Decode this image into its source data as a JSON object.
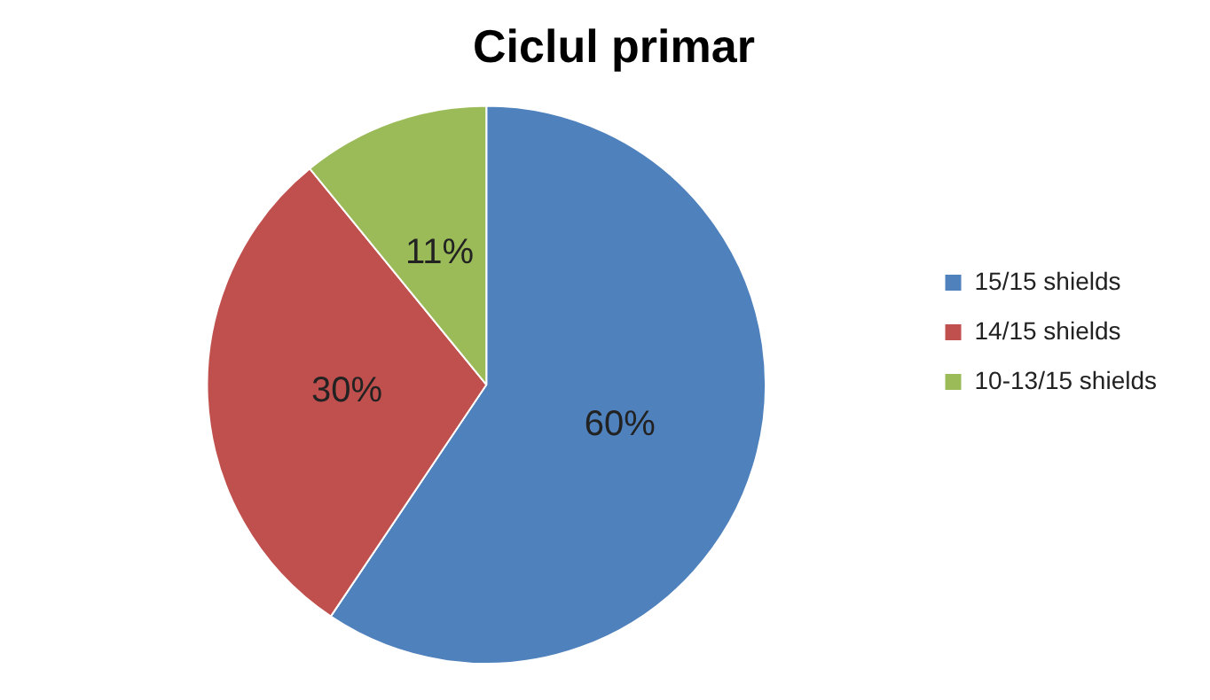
{
  "chart_data": {
    "type": "pie",
    "title": "Ciclul primar",
    "categories": [
      "15/15 shields",
      "14/15 shields",
      "10-13/15 shields"
    ],
    "values": [
      60,
      30,
      11
    ],
    "colors": [
      "#4f81bd",
      "#c0504d",
      "#9bbb59"
    ],
    "value_labels": [
      "60%",
      "30%",
      "11%"
    ],
    "legend": "right"
  }
}
